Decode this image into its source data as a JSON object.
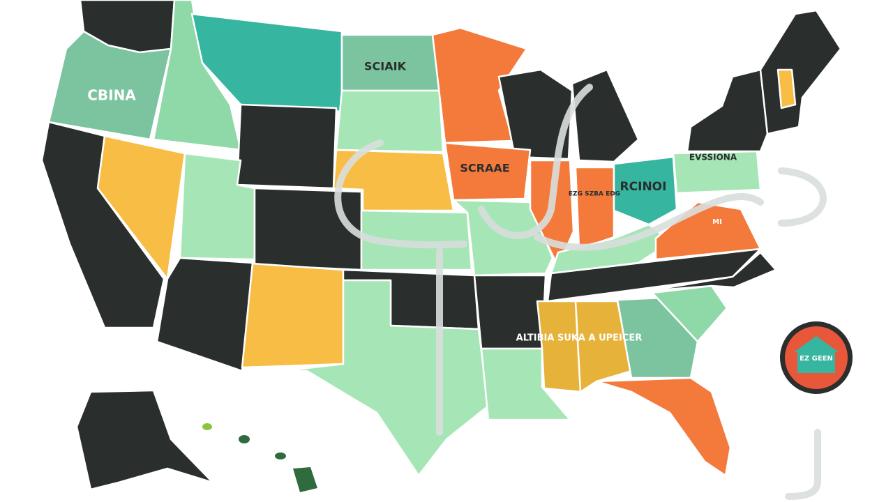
{
  "map": {
    "labels": [
      "CBINA",
      "SCIAIK",
      "SCRAAE",
      "RCINOI",
      "EVSSIONA",
      "EZG SZBA EDG",
      "ALTIBIA SUKA A UPEICER",
      "MI"
    ]
  },
  "badge": {
    "label": "EZ GEEN"
  }
}
